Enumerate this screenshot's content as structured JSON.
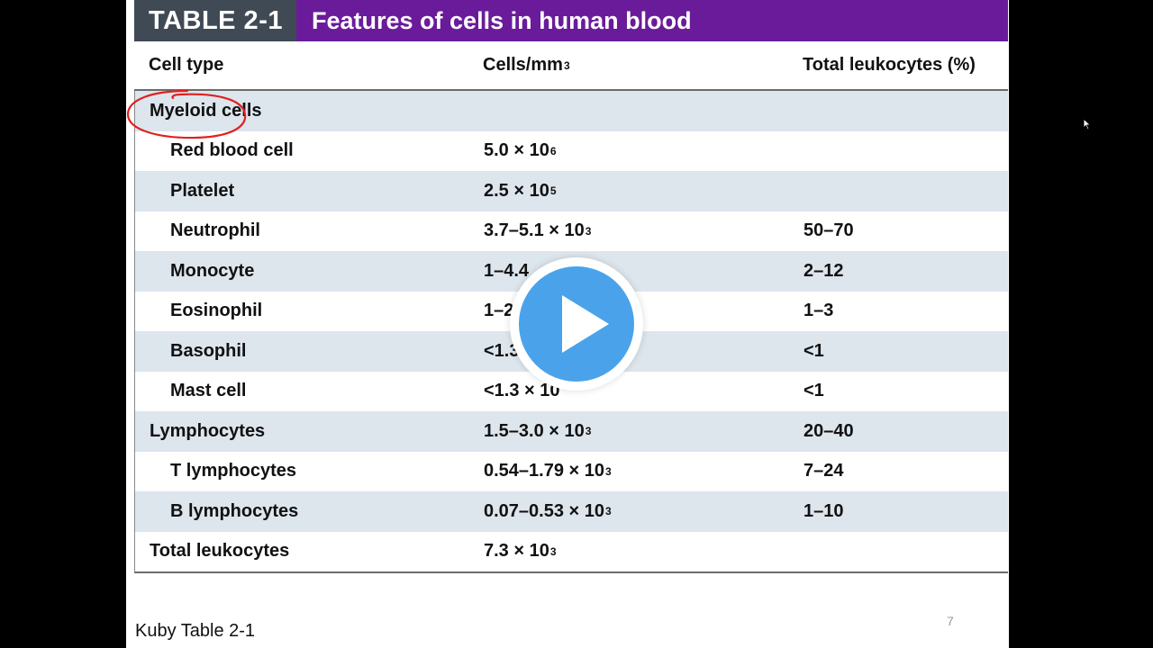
{
  "title": {
    "tag": "TABLE 2-1",
    "text": "Features of cells in human blood"
  },
  "headers": {
    "col1": "Cell type",
    "col2": "Cells/mm",
    "col2_sup": "3",
    "col3": "Total leukocytes (%)"
  },
  "rows": [
    {
      "name": "Myeloid cells",
      "indent": false,
      "shaded": true,
      "count": "",
      "count_sup": "",
      "pct": ""
    },
    {
      "name": "Red blood cell",
      "indent": true,
      "shaded": false,
      "count": "5.0 × 10",
      "count_sup": "6",
      "pct": ""
    },
    {
      "name": "Platelet",
      "indent": true,
      "shaded": true,
      "count": "2.5 × 10",
      "count_sup": "5",
      "pct": ""
    },
    {
      "name": "Neutrophil",
      "indent": true,
      "shaded": false,
      "count": "3.7–5.1 × 10",
      "count_sup": "3",
      "pct": "50–70"
    },
    {
      "name": "Monocyte",
      "indent": true,
      "shaded": true,
      "count": "1–4.4",
      "count_sup": "",
      "pct": "2–12"
    },
    {
      "name": "Eosinophil",
      "indent": true,
      "shaded": false,
      "count": "1–2",
      "count_sup": "",
      "pct": "1–3"
    },
    {
      "name": "Basophil",
      "indent": true,
      "shaded": true,
      "count": "<1.3",
      "count_sup": "",
      "pct": "<1"
    },
    {
      "name": "Mast cell",
      "indent": true,
      "shaded": false,
      "count": "<1.3 × 10",
      "count_sup": "",
      "pct": "<1"
    },
    {
      "name": "Lymphocytes",
      "indent": false,
      "shaded": true,
      "count": "1.5–3.0 × 10",
      "count_sup": "3",
      "pct": "20–40"
    },
    {
      "name": "T lymphocytes",
      "indent": true,
      "shaded": false,
      "count": "0.54–1.79 × 10",
      "count_sup": "3",
      "pct": "7–24"
    },
    {
      "name": "B lymphocytes",
      "indent": true,
      "shaded": true,
      "count": "0.07–0.53 × 10",
      "count_sup": "3",
      "pct": "1–10"
    },
    {
      "name": "Total leukocytes",
      "indent": false,
      "shaded": false,
      "count": "7.3 × 10",
      "count_sup": "3",
      "pct": ""
    }
  ],
  "footer": "Kuby Table 2-1",
  "page_number": "7",
  "colors": {
    "title_tag_bg": "#3f4a55",
    "title_bg": "#6a1b9a",
    "row_shade": "#dde5ed",
    "play_blue": "#4aa3ea",
    "annotation_red": "#e0201e"
  },
  "icons": {
    "play": "play-icon",
    "cursor": "mouse-cursor-icon",
    "annotation": "hand-drawn-circle"
  }
}
